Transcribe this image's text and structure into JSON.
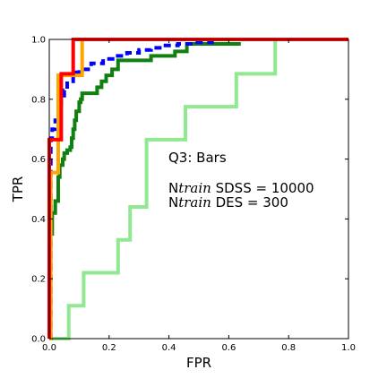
{
  "chart_data": {
    "type": "line",
    "title": "",
    "xlabel": "FPR",
    "ylabel": "TPR",
    "xlim": [
      0,
      1
    ],
    "ylim": [
      0,
      1
    ],
    "xticks": [
      "0.0",
      "0.2",
      "0.4",
      "0.6",
      "0.8",
      "1.0"
    ],
    "yticks": [
      "0.0",
      "0.2",
      "0.4",
      "0.6",
      "0.8",
      "1.0"
    ],
    "grid": false,
    "legend": "none",
    "annotations": [
      "Q3: Bars",
      "N",
      "train",
      " SDSS = 10000",
      "N",
      "train",
      " DES = 300"
    ],
    "series": [
      {
        "color": "#90e890",
        "style": "solid",
        "step": true,
        "x": [
          0.0,
          0.065,
          0.065,
          0.115,
          0.115,
          0.23,
          0.23,
          0.27,
          0.27,
          0.325,
          0.325,
          0.455,
          0.455,
          0.625,
          0.625,
          0.755,
          0.755,
          1.0
        ],
        "y": [
          0.0,
          0.0,
          0.11,
          0.11,
          0.22,
          0.22,
          0.33,
          0.33,
          0.44,
          0.44,
          0.665,
          0.665,
          0.775,
          0.775,
          0.885,
          0.885,
          1.0,
          1.0
        ]
      },
      {
        "color": "#108010",
        "style": "solid",
        "step": true,
        "x": [
          0.0,
          0.0,
          0.01,
          0.02,
          0.03,
          0.035,
          0.045,
          0.05,
          0.055,
          0.06,
          0.07,
          0.075,
          0.08,
          0.085,
          0.09,
          0.1,
          0.105,
          0.11,
          0.15,
          0.16,
          0.175,
          0.19,
          0.21,
          0.23,
          0.34,
          0.34,
          0.42,
          0.42,
          0.46,
          0.46,
          0.64
        ],
        "y": [
          0.0,
          0.35,
          0.42,
          0.46,
          0.54,
          0.58,
          0.6,
          0.62,
          0.62,
          0.63,
          0.64,
          0.67,
          0.7,
          0.73,
          0.76,
          0.79,
          0.8,
          0.82,
          0.82,
          0.84,
          0.86,
          0.88,
          0.9,
          0.93,
          0.93,
          0.945,
          0.945,
          0.96,
          0.96,
          0.985,
          0.985
        ]
      },
      {
        "color": "#0000ff",
        "style": "dashed",
        "step": true,
        "x": [
          0.0,
          0.005,
          0.01,
          0.02,
          0.03,
          0.04,
          0.05,
          0.06,
          0.08,
          0.1,
          0.14,
          0.18,
          0.22,
          0.26,
          0.3,
          0.34,
          0.38,
          0.43,
          0.48,
          0.55
        ],
        "y": [
          0.0,
          0.67,
          0.7,
          0.73,
          0.77,
          0.8,
          0.83,
          0.86,
          0.89,
          0.9,
          0.92,
          0.935,
          0.945,
          0.955,
          0.965,
          0.972,
          0.98,
          0.985,
          0.99,
          0.99
        ]
      },
      {
        "color": "#ffa500",
        "style": "solid",
        "step": true,
        "x": [
          0.0,
          0.0,
          0.005,
          0.005,
          0.03,
          0.03,
          0.11,
          0.11,
          1.0
        ],
        "y": [
          0.0,
          0.0,
          0.0,
          0.555,
          0.555,
          0.88,
          0.88,
          1.0,
          1.0
        ]
      },
      {
        "color": "#ff0000",
        "style": "solid",
        "step": true,
        "x": [
          0.0,
          0.0,
          0.04,
          0.04,
          0.08,
          0.08,
          1.0
        ],
        "y": [
          0.0,
          0.665,
          0.665,
          0.885,
          0.885,
          1.0,
          1.0
        ]
      }
    ]
  }
}
